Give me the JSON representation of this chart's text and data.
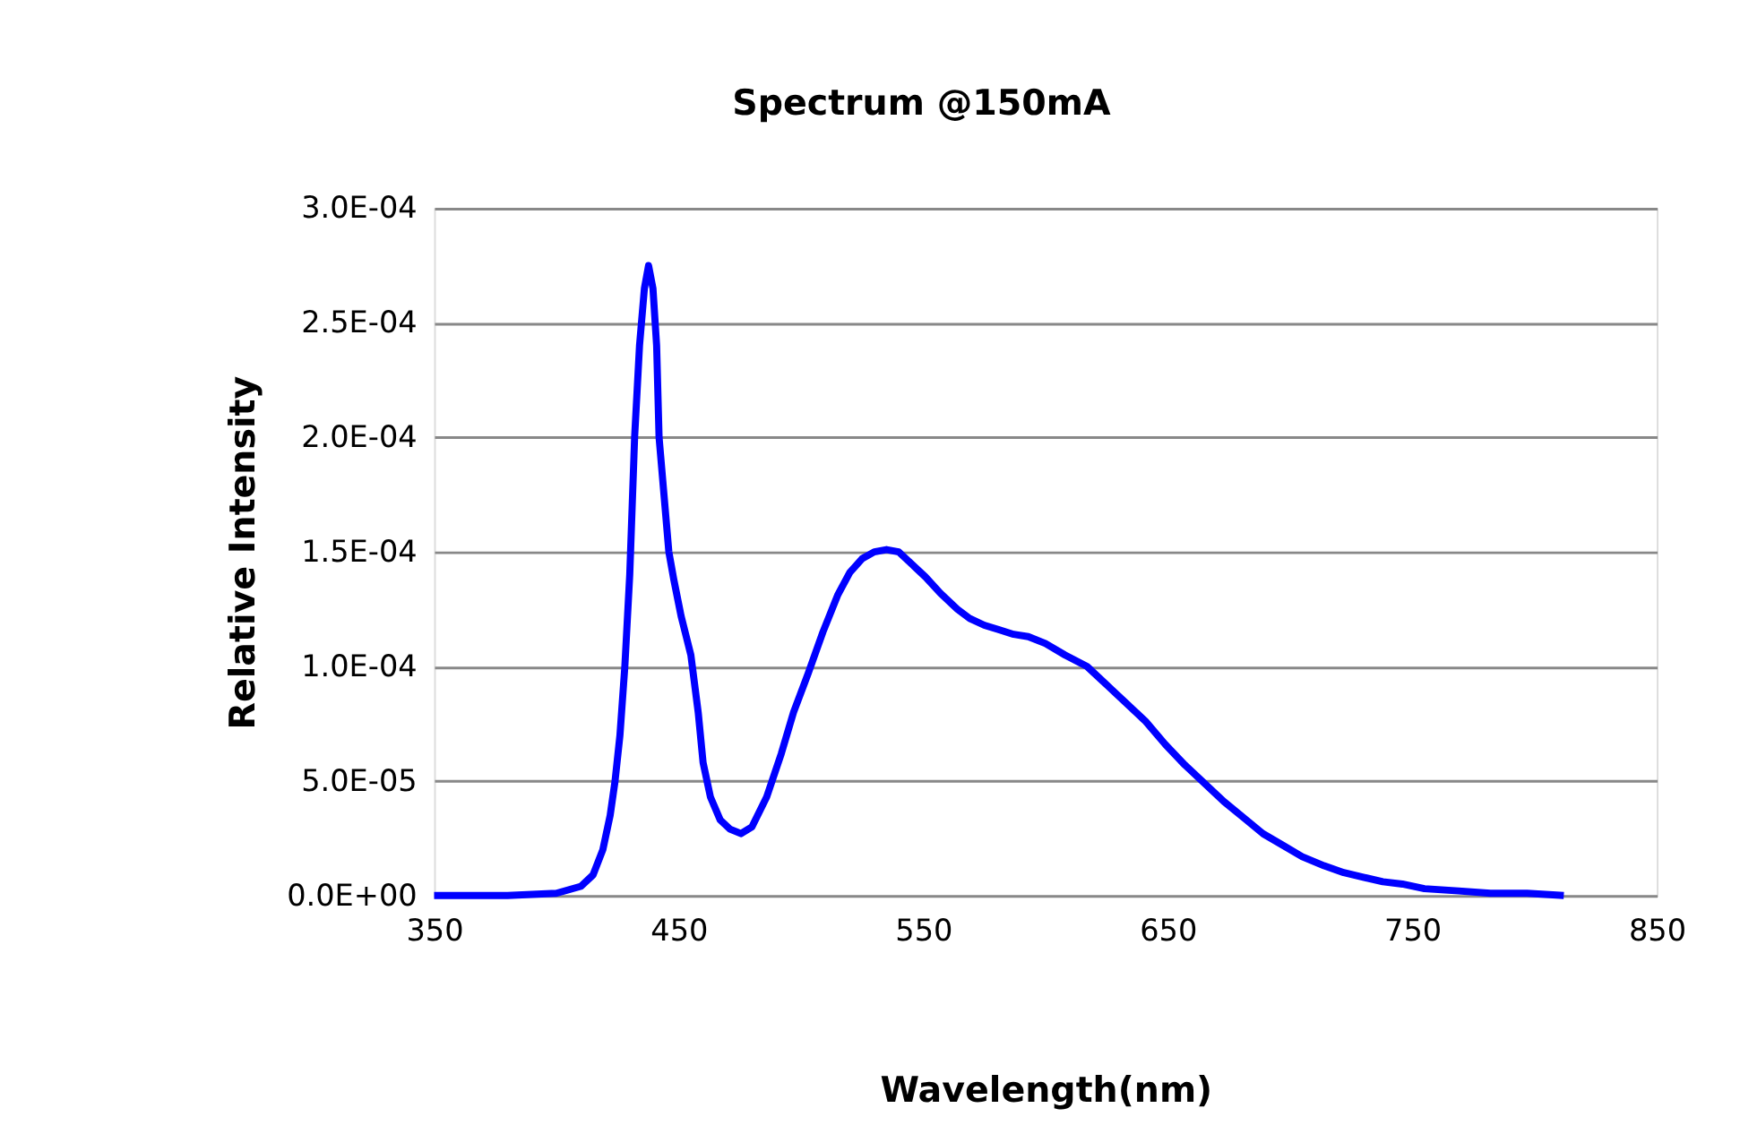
{
  "chart_data": {
    "type": "line",
    "title": "Spectrum @150mA",
    "xlabel": "Wavelength(nm)",
    "ylabel": "Relative Intensity",
    "series": [
      {
        "color": "#0000ff",
        "x": [
          350,
          380,
          400,
          410,
          415,
          419,
          422,
          424,
          426,
          428,
          430,
          432,
          434,
          436,
          437.7,
          439.5,
          441,
          442,
          444,
          446,
          448,
          451,
          455,
          458,
          460,
          463,
          467,
          471,
          475.5,
          480,
          486,
          492,
          497,
          503,
          509,
          515,
          520,
          525,
          530,
          535,
          540,
          545,
          551,
          557,
          564,
          569,
          575,
          581,
          587,
          593,
          600,
          608,
          617,
          625,
          633,
          641,
          649,
          657,
          665,
          673,
          681,
          689,
          697,
          705,
          714,
          722,
          730,
          738,
          746,
          755,
          769,
          782,
          797,
          812
        ],
        "values": [
          0,
          0,
          1e-06,
          4e-06,
          9e-06,
          2e-05,
          3.5e-05,
          5e-05,
          7e-05,
          0.0001,
          0.00014,
          0.0002,
          0.00024,
          0.000265,
          0.000275,
          0.000265,
          0.00024,
          0.0002,
          0.000175,
          0.00015,
          0.000138,
          0.000122,
          0.000105,
          8e-05,
          5.8e-05,
          4.3e-05,
          3.3e-05,
          2.9e-05,
          2.7e-05,
          3e-05,
          4.3e-05,
          6.2e-05,
          8e-05,
          9.7e-05,
          0.000115,
          0.000131,
          0.000141,
          0.000147,
          0.00015,
          0.000151,
          0.00015,
          0.000145,
          0.000139,
          0.000132,
          0.000125,
          0.000121,
          0.000118,
          0.000116,
          0.000114,
          0.000113,
          0.00011,
          0.000105,
          0.0001,
          9.2e-05,
          8.4e-05,
          7.6e-05,
          6.6e-05,
          5.7e-05,
          4.9e-05,
          4.1e-05,
          3.4e-05,
          2.7e-05,
          2.2e-05,
          1.7e-05,
          1.3e-05,
          1e-05,
          8e-06,
          6e-06,
          5e-06,
          3e-06,
          2e-06,
          1e-06,
          1e-06,
          0
        ]
      }
    ],
    "xlim": [
      350,
      850
    ],
    "xticks": [
      350,
      450,
      550,
      650,
      750,
      850
    ],
    "ylim": [
      0,
      0.0003
    ],
    "yticks": [
      {
        "value": 0,
        "label": "0.0E+00"
      },
      {
        "value": 5e-05,
        "label": "5.0E-05"
      },
      {
        "value": 0.0001,
        "label": "1.0E-04"
      },
      {
        "value": 0.00015,
        "label": "1.5E-04"
      },
      {
        "value": 0.0002,
        "label": "2.0E-04"
      },
      {
        "value": 0.00025,
        "label": "2.5E-04"
      },
      {
        "value": 0.0003,
        "label": "3.0E-04"
      }
    ],
    "grid": "y",
    "legend": false,
    "marker": "none",
    "line_style": "solid"
  }
}
